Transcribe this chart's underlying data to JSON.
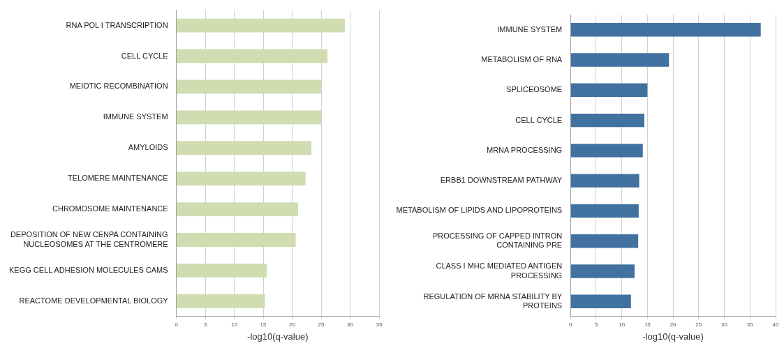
{
  "chart_data": [
    {
      "type": "bar",
      "orientation": "horizontal",
      "xlabel": "-log10(q-value)",
      "categories": [
        "RNA POL I TRANSCRIPTION",
        "CELL CYCLE",
        "MEIOTIC RECOMBINATION",
        "IMMUNE SYSTEM",
        "AMYLOIDS",
        "TELOMERE MAINTENANCE",
        "CHROMOSOME MAINTENANCE",
        "DEPOSITION OF NEW CENPA CONTAINING NUCLEOSOMES AT THE CENTROMERE",
        "KEGG CELL ADHESION MOLECULES CAMS",
        "REACTOME DEVELOPMENTAL BIOLOGY"
      ],
      "values": [
        29.1,
        26.1,
        25,
        25,
        23.3,
        22.3,
        21.0,
        20.6,
        15.6,
        15.3
      ],
      "color": "#cfddb0",
      "xlim": [
        0,
        35
      ],
      "xticks": [
        0,
        5,
        10,
        15,
        20,
        25,
        30,
        35
      ],
      "grid": "x",
      "legend": false
    },
    {
      "type": "bar",
      "orientation": "horizontal",
      "xlabel": "-log10(q-value)",
      "categories": [
        "IMMUNE SYSTEM",
        "METABOLISM OF RNA",
        "SPLICEOSOME",
        "CELL CYCLE",
        "MRNA PROCESSING",
        "ERBB1 DOWNSTREAM PATHWAY",
        "METABOLISM OF LIPIDS AND LIPOPROTEINS",
        "PROCESSING OF CAPPED INTRON CONTAINING PRE",
        "CLASS I MHC MEDIATED ANTIGEN PROCESSING",
        "REGULATION OF MRNA STABILITY BY PROTEINS"
      ],
      "values": [
        37.1,
        19.2,
        15.0,
        14.4,
        14.1,
        13.4,
        13.3,
        13.2,
        12.5,
        11.8
      ],
      "color": "#41729f",
      "xlim": [
        0,
        40
      ],
      "xticks": [
        0,
        5,
        10,
        15,
        20,
        25,
        30,
        35,
        40
      ],
      "grid": "x",
      "legend": false
    }
  ]
}
